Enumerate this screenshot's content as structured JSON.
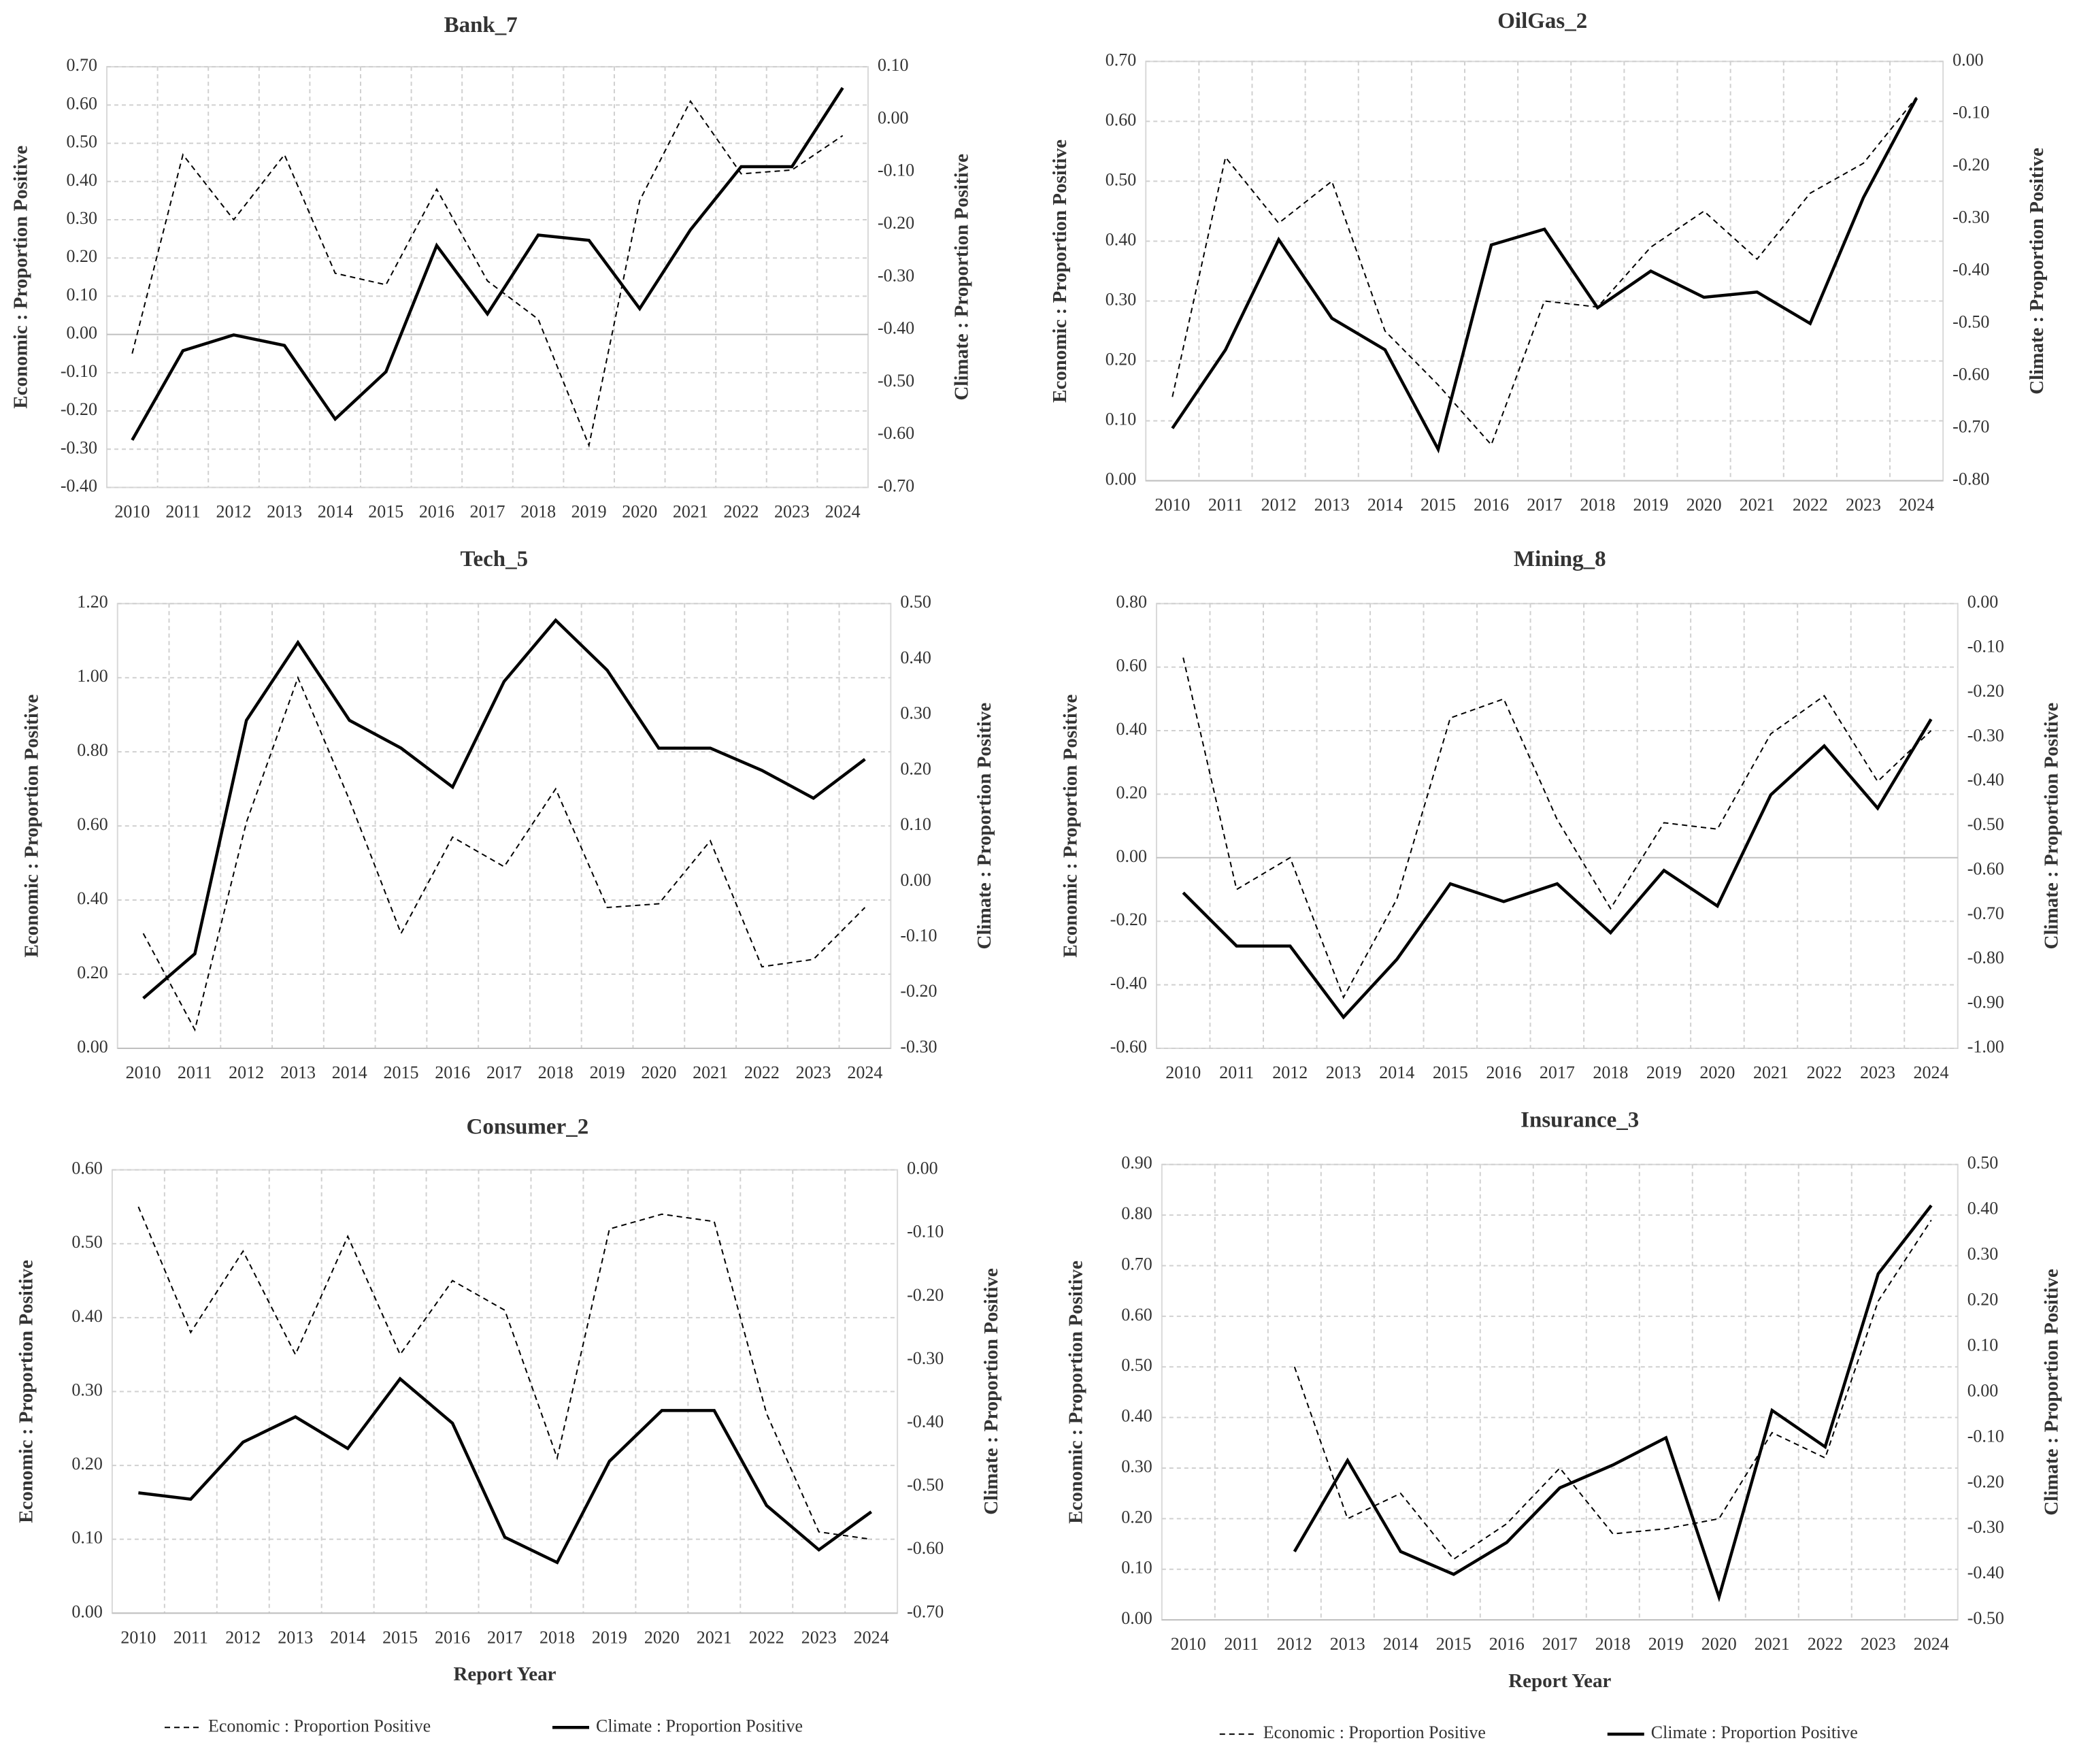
{
  "chart_data": [
    {
      "type": "line",
      "title": "Bank_7",
      "ylabel": "Economic : Proportion Positive",
      "y2label": "Climate : Proportion Positive",
      "grid": true,
      "categories": [
        "2010",
        "2011",
        "2012",
        "2013",
        "2014",
        "2015",
        "2016",
        "2017",
        "2018",
        "2019",
        "2020",
        "2021",
        "2022",
        "2023",
        "2024"
      ],
      "series": [
        {
          "name": "Economic : Proportion Positive",
          "color": "#000000",
          "line_style": "dashed",
          "values": [
            -0.05,
            0.47,
            0.3,
            0.47,
            0.16,
            0.13,
            0.38,
            0.14,
            0.04,
            -0.29,
            0.35,
            0.61,
            0.42,
            0.43,
            0.52
          ]
        },
        {
          "name": "Climate : Proportion Positive",
          "color": "#000000",
          "line_style": "solid",
          "axis": "y2",
          "values": [
            -0.61,
            -0.44,
            -0.41,
            -0.43,
            -0.57,
            -0.48,
            -0.24,
            -0.37,
            -0.22,
            -0.23,
            -0.36,
            -0.21,
            -0.09,
            -0.09,
            0.06
          ]
        }
      ],
      "ylim": [
        -0.4,
        0.7
      ],
      "yticks": [
        {
          "value": -0.4,
          "label": "-0.40"
        },
        {
          "value": -0.3,
          "label": "-0.30"
        },
        {
          "value": -0.2,
          "label": "-0.20"
        },
        {
          "value": -0.1,
          "label": "-0.10"
        },
        {
          "value": 0,
          "label": "0.00"
        },
        {
          "value": 0.1,
          "label": "0.10"
        },
        {
          "value": 0.2,
          "label": "0.20"
        },
        {
          "value": 0.3,
          "label": "0.30"
        },
        {
          "value": 0.4,
          "label": "0.40"
        },
        {
          "value": 0.5,
          "label": "0.50"
        },
        {
          "value": 0.6,
          "label": "0.60"
        },
        {
          "value": 0.7,
          "label": "0.70"
        }
      ],
      "y2lim": [
        -0.7,
        0.1
      ],
      "y2ticks": [
        {
          "value": -0.7,
          "label": "-0.70"
        },
        {
          "value": -0.6,
          "label": "-0.60"
        },
        {
          "value": -0.5,
          "label": "-0.50"
        },
        {
          "value": -0.4,
          "label": "-0.40"
        },
        {
          "value": -0.3,
          "label": "-0.30"
        },
        {
          "value": -0.2,
          "label": "-0.20"
        },
        {
          "value": -0.1,
          "label": "-0.10"
        },
        {
          "value": 0,
          "label": "0.00"
        },
        {
          "value": 0.1,
          "label": "0.10"
        }
      ]
    },
    {
      "type": "line",
      "title": "OilGas_2",
      "ylabel": "Economic : Proportion Positive",
      "y2label": "Climate : Proportion Positive",
      "grid": true,
      "categories": [
        "2010",
        "2011",
        "2012",
        "2013",
        "2014",
        "2015",
        "2016",
        "2017",
        "2018",
        "2019",
        "2020",
        "2021",
        "2022",
        "2023",
        "2024"
      ],
      "series": [
        {
          "name": "Economic : Proportion Positive",
          "color": "#000000",
          "line_style": "dashed",
          "values": [
            0.14,
            0.54,
            0.43,
            0.5,
            0.25,
            0.16,
            0.06,
            0.3,
            0.29,
            0.39,
            0.45,
            0.37,
            0.48,
            0.53,
            0.64
          ]
        },
        {
          "name": "Climate : Proportion Positive",
          "color": "#000000",
          "line_style": "solid",
          "axis": "y2",
          "values": [
            -0.7,
            -0.55,
            -0.34,
            -0.49,
            -0.55,
            -0.74,
            -0.35,
            -0.32,
            -0.47,
            -0.4,
            -0.45,
            -0.44,
            -0.5,
            -0.26,
            -0.07
          ]
        }
      ],
      "ylim": [
        0,
        0.7
      ],
      "yticks": [
        {
          "value": 0,
          "label": "0.00"
        },
        {
          "value": 0.1,
          "label": "0.10"
        },
        {
          "value": 0.2,
          "label": "0.20"
        },
        {
          "value": 0.3,
          "label": "0.30"
        },
        {
          "value": 0.4,
          "label": "0.40"
        },
        {
          "value": 0.5,
          "label": "0.50"
        },
        {
          "value": 0.6,
          "label": "0.60"
        },
        {
          "value": 0.7,
          "label": "0.70"
        }
      ],
      "y2lim": [
        -0.8,
        0
      ],
      "y2ticks": [
        {
          "value": -0.8,
          "label": "-0.80"
        },
        {
          "value": -0.7,
          "label": "-0.70"
        },
        {
          "value": -0.6,
          "label": "-0.60"
        },
        {
          "value": -0.5,
          "label": "-0.50"
        },
        {
          "value": -0.4,
          "label": "-0.40"
        },
        {
          "value": -0.3,
          "label": "-0.30"
        },
        {
          "value": -0.2,
          "label": "-0.20"
        },
        {
          "value": -0.1,
          "label": "-0.10"
        },
        {
          "value": 0,
          "label": "0.00"
        }
      ]
    },
    {
      "type": "line",
      "title": "Tech_5",
      "ylabel": "Economic : Proportion Positive",
      "y2label": "Climate : Proportion Positive",
      "grid": true,
      "categories": [
        "2010",
        "2011",
        "2012",
        "2013",
        "2014",
        "2015",
        "2016",
        "2017",
        "2018",
        "2019",
        "2020",
        "2021",
        "2022",
        "2023",
        "2024"
      ],
      "series": [
        {
          "name": "Economic : Proportion Positive",
          "color": "#000000",
          "line_style": "dashed",
          "values": [
            0.31,
            0.05,
            0.61,
            1.0,
            0.67,
            0.31,
            0.57,
            0.49,
            0.7,
            0.38,
            0.39,
            0.56,
            0.22,
            0.24,
            0.38
          ]
        },
        {
          "name": "Climate : Proportion Positive",
          "color": "#000000",
          "line_style": "solid",
          "axis": "y2",
          "values": [
            -0.21,
            -0.13,
            0.29,
            0.43,
            0.29,
            0.24,
            0.17,
            0.36,
            0.47,
            0.38,
            0.24,
            0.24,
            0.2,
            0.15,
            0.22
          ]
        }
      ],
      "ylim": [
        0,
        1.2
      ],
      "yticks": [
        {
          "value": 0,
          "label": "0.00"
        },
        {
          "value": 0.2,
          "label": "0.20"
        },
        {
          "value": 0.4,
          "label": "0.40"
        },
        {
          "value": 0.6,
          "label": "0.60"
        },
        {
          "value": 0.8,
          "label": "0.80"
        },
        {
          "value": 1,
          "label": "1.00"
        },
        {
          "value": 1.2,
          "label": "1.20"
        }
      ],
      "y2lim": [
        -0.3,
        0.5
      ],
      "y2ticks": [
        {
          "value": -0.3,
          "label": "-0.30"
        },
        {
          "value": -0.2,
          "label": "-0.20"
        },
        {
          "value": -0.1,
          "label": "-0.10"
        },
        {
          "value": 0,
          "label": "0.00"
        },
        {
          "value": 0.1,
          "label": "0.10"
        },
        {
          "value": 0.2,
          "label": "0.20"
        },
        {
          "value": 0.3,
          "label": "0.30"
        },
        {
          "value": 0.4,
          "label": "0.40"
        },
        {
          "value": 0.5,
          "label": "0.50"
        }
      ]
    },
    {
      "type": "line",
      "title": "Mining_8",
      "ylabel": "Economic : Proportion Positive",
      "y2label": "Climate : Proportion Positive",
      "grid": true,
      "categories": [
        "2010",
        "2011",
        "2012",
        "2013",
        "2014",
        "2015",
        "2016",
        "2017",
        "2018",
        "2019",
        "2020",
        "2021",
        "2022",
        "2023",
        "2024"
      ],
      "series": [
        {
          "name": "Economic : Proportion Positive",
          "color": "#000000",
          "line_style": "dashed",
          "values": [
            0.63,
            -0.1,
            0.0,
            -0.44,
            -0.13,
            0.44,
            0.5,
            0.12,
            -0.16,
            0.11,
            0.09,
            0.39,
            0.51,
            0.24,
            0.4
          ]
        },
        {
          "name": "Climate : Proportion Positive",
          "color": "#000000",
          "line_style": "solid",
          "axis": "y2",
          "values": [
            -0.65,
            -0.77,
            -0.77,
            -0.93,
            -0.8,
            -0.63,
            -0.67,
            -0.63,
            -0.74,
            -0.6,
            -0.68,
            -0.43,
            -0.32,
            -0.46,
            -0.26
          ]
        }
      ],
      "ylim": [
        -0.6,
        0.8
      ],
      "yticks": [
        {
          "value": -0.6,
          "label": "-0.60"
        },
        {
          "value": -0.4,
          "label": "-0.40"
        },
        {
          "value": -0.2,
          "label": "-0.20"
        },
        {
          "value": 0,
          "label": "0.00"
        },
        {
          "value": 0.2,
          "label": "0.20"
        },
        {
          "value": 0.4,
          "label": "0.40"
        },
        {
          "value": 0.6,
          "label": "0.60"
        },
        {
          "value": 0.8,
          "label": "0.80"
        }
      ],
      "y2lim": [
        -1,
        0
      ],
      "y2ticks": [
        {
          "value": -1,
          "label": "-1.00"
        },
        {
          "value": -0.9,
          "label": "-0.90"
        },
        {
          "value": -0.8,
          "label": "-0.80"
        },
        {
          "value": -0.7,
          "label": "-0.70"
        },
        {
          "value": -0.6,
          "label": "-0.60"
        },
        {
          "value": -0.5,
          "label": "-0.50"
        },
        {
          "value": -0.4,
          "label": "-0.40"
        },
        {
          "value": -0.3,
          "label": "-0.30"
        },
        {
          "value": -0.2,
          "label": "-0.20"
        },
        {
          "value": -0.1,
          "label": "-0.10"
        },
        {
          "value": 0,
          "label": "0.00"
        }
      ]
    },
    {
      "type": "line",
      "title": "Consumer_2",
      "ylabel": "Economic : Proportion Positive",
      "y2label": "Climate : Proportion Positive",
      "xlabel": "Report Year",
      "grid": true,
      "legend": "bottom",
      "categories": [
        "2010",
        "2011",
        "2012",
        "2013",
        "2014",
        "2015",
        "2016",
        "2017",
        "2018",
        "2019",
        "2020",
        "2021",
        "2022",
        "2023",
        "2024"
      ],
      "series": [
        {
          "name": "Economic : Proportion Positive",
          "color": "#000000",
          "line_style": "dashed",
          "values": [
            0.55,
            0.38,
            0.49,
            0.35,
            0.51,
            0.35,
            0.45,
            0.41,
            0.21,
            0.52,
            0.54,
            0.53,
            0.27,
            0.11,
            0.1
          ]
        },
        {
          "name": "Climate : Proportion Positive",
          "color": "#000000",
          "line_style": "solid",
          "axis": "y2",
          "values": [
            -0.51,
            -0.52,
            -0.43,
            -0.39,
            -0.44,
            -0.33,
            -0.4,
            -0.58,
            -0.62,
            -0.46,
            -0.38,
            -0.38,
            -0.53,
            -0.6,
            -0.54
          ]
        }
      ],
      "ylim": [
        0,
        0.6
      ],
      "yticks": [
        {
          "value": 0,
          "label": "0.00"
        },
        {
          "value": 0.1,
          "label": "0.10"
        },
        {
          "value": 0.2,
          "label": "0.20"
        },
        {
          "value": 0.3,
          "label": "0.30"
        },
        {
          "value": 0.4,
          "label": "0.40"
        },
        {
          "value": 0.5,
          "label": "0.50"
        },
        {
          "value": 0.6,
          "label": "0.60"
        }
      ],
      "y2lim": [
        -0.7,
        0
      ],
      "y2ticks": [
        {
          "value": -0.7,
          "label": "-0.70"
        },
        {
          "value": -0.6,
          "label": "-0.60"
        },
        {
          "value": -0.5,
          "label": "-0.50"
        },
        {
          "value": -0.4,
          "label": "-0.40"
        },
        {
          "value": -0.3,
          "label": "-0.30"
        },
        {
          "value": -0.2,
          "label": "-0.20"
        },
        {
          "value": -0.1,
          "label": "-0.10"
        },
        {
          "value": 0,
          "label": "0.00"
        }
      ]
    },
    {
      "type": "line",
      "title": "Insurance_3",
      "ylabel": "Economic : Proportion Positive",
      "y2label": "Climate : Proportion Positive",
      "xlabel": "Report Year",
      "grid": true,
      "legend": "bottom",
      "categories": [
        "2010",
        "2011",
        "2012",
        "2013",
        "2014",
        "2015",
        "2016",
        "2017",
        "2018",
        "2019",
        "2020",
        "2021",
        "2022",
        "2023",
        "2024"
      ],
      "series": [
        {
          "name": "Economic : Proportion Positive",
          "color": "#000000",
          "line_style": "dashed",
          "values": [
            null,
            null,
            0.5,
            0.2,
            0.25,
            0.12,
            0.19,
            0.3,
            0.17,
            0.18,
            0.2,
            0.37,
            0.32,
            0.63,
            0.79
          ]
        },
        {
          "name": "Climate : Proportion Positive",
          "color": "#000000",
          "line_style": "solid",
          "axis": "y2",
          "values": [
            null,
            null,
            -0.35,
            -0.15,
            -0.35,
            -0.4,
            -0.33,
            -0.21,
            -0.16,
            -0.1,
            -0.45,
            -0.04,
            -0.12,
            0.26,
            0.41
          ]
        }
      ],
      "ylim": [
        0,
        0.9
      ],
      "yticks": [
        {
          "value": 0,
          "label": "0.00"
        },
        {
          "value": 0.1,
          "label": "0.10"
        },
        {
          "value": 0.2,
          "label": "0.20"
        },
        {
          "value": 0.3,
          "label": "0.30"
        },
        {
          "value": 0.4,
          "label": "0.40"
        },
        {
          "value": 0.5,
          "label": "0.50"
        },
        {
          "value": 0.6,
          "label": "0.60"
        },
        {
          "value": 0.7,
          "label": "0.70"
        },
        {
          "value": 0.8,
          "label": "0.80"
        },
        {
          "value": 0.9,
          "label": "0.90"
        }
      ],
      "y2lim": [
        -0.5,
        0.5
      ],
      "y2ticks": [
        {
          "value": -0.5,
          "label": "-0.50"
        },
        {
          "value": -0.4,
          "label": "-0.40"
        },
        {
          "value": -0.3,
          "label": "-0.30"
        },
        {
          "value": -0.2,
          "label": "-0.20"
        },
        {
          "value": -0.1,
          "label": "-0.10"
        },
        {
          "value": 0,
          "label": "0.00"
        },
        {
          "value": 0.1,
          "label": "0.10"
        },
        {
          "value": 0.2,
          "label": "0.20"
        },
        {
          "value": 0.3,
          "label": "0.30"
        },
        {
          "value": 0.4,
          "label": "0.40"
        },
        {
          "value": 0.5,
          "label": "0.50"
        }
      ]
    }
  ]
}
